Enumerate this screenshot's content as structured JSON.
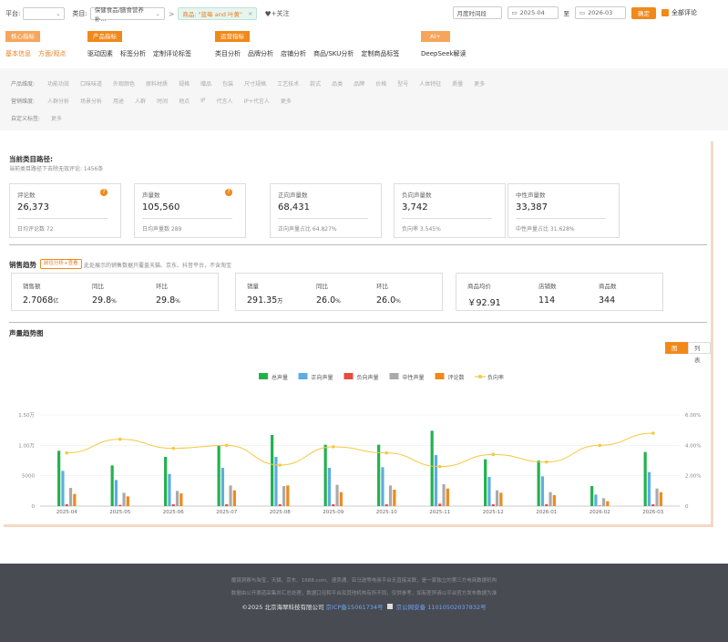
{
  "topbar": {
    "platform_label": "平台:",
    "category_label": "类目:",
    "category_value": "保健食品/膳食营养补...",
    "arrow": ">",
    "product_chip": "商品: \"蓝莓 and 叶黄\"",
    "follow_label": "+关注",
    "time_select": "月度时间段",
    "date_from": "2025-04",
    "to_label": "至",
    "date_to": "2026-03",
    "confirm_label": "确定",
    "all_reviews_label": "全部评论"
  },
  "nav": {
    "groups": [
      {
        "head": "核心指标",
        "items": [
          "基本信息",
          "方面/观点"
        ]
      },
      {
        "head": "产品指标",
        "items": [
          "驱动因素",
          "标签分析",
          "定制评论标签"
        ]
      },
      {
        "head": "运营指标",
        "items": [
          "类目分析",
          "品牌分析",
          "店铺分析",
          "商品/SKU分析",
          "定制商品标签"
        ]
      },
      {
        "head": "AI+",
        "items": [
          "DeepSeek解读"
        ]
      }
    ]
  },
  "options": {
    "row1_label": "产品维度:",
    "row1": [
      "功能功效",
      "口味味道",
      "外观颜色",
      "原料材质",
      "规格",
      "赠品",
      "包装",
      "尺寸规格",
      "工艺技术",
      "款式",
      "品类",
      "品牌",
      "价格",
      "型号",
      "人体特征",
      "质量",
      "更多"
    ],
    "row2_label": "营销维度:",
    "row2": [
      "人群分析",
      "场景分析",
      "用途",
      "人群",
      "时间",
      "地点",
      "IP",
      "代言人",
      "IP+代言人",
      "更多"
    ],
    "row3_label": "自定义标签:",
    "row3": [
      "更多"
    ]
  },
  "summary": {
    "title": "当前类目路径:",
    "subtitle": "当前类目路径下去除无效评论: 1456条",
    "cards": [
      {
        "label": "评论数",
        "value": "26,373",
        "foot": "日均评论数  72",
        "help": "?"
      },
      {
        "label": "声量数",
        "value": "105,560",
        "foot": "日均声量数  289",
        "help": "?"
      },
      {
        "label": "正向声量数",
        "value": "68,431",
        "foot": "正向声量占比  64.827%"
      },
      {
        "label": "负向声量数",
        "value": "3,742",
        "foot": "负向率  3.545%"
      },
      {
        "label": "中性声量数",
        "value": "33,387",
        "foot": "中性声量占比  31.628%"
      }
    ]
  },
  "sales": {
    "title": "销售趋势",
    "badge": "前往分析+查看",
    "note": "此处展示的销售数据只覆盖天猫、京东、抖音平台，不含淘宝",
    "box1": [
      {
        "label": "销售额",
        "value": "2.7068",
        "unit": "亿"
      },
      {
        "label": "同比",
        "value": "29.8",
        "unit": "%"
      },
      {
        "label": "环比",
        "value": "29.8",
        "unit": "%"
      }
    ],
    "box2": [
      {
        "label": "销量",
        "value": "291.35",
        "unit": "万"
      },
      {
        "label": "同比",
        "value": "26.0",
        "unit": "%"
      },
      {
        "label": "环比",
        "value": "26.0",
        "unit": "%"
      }
    ],
    "box3": [
      {
        "label": "商品均价",
        "value": "￥92.91",
        "unit": ""
      },
      {
        "label": "店铺数",
        "value": "114",
        "unit": ""
      },
      {
        "label": "商品数",
        "value": "344",
        "unit": ""
      }
    ]
  },
  "trend": {
    "title": "声量趋势图",
    "toggle_chart": "图表",
    "toggle_list": "列表"
  },
  "chart_data": {
    "type": "bar",
    "categories": [
      "2025-04",
      "2025-05",
      "2025-06",
      "2025-07",
      "2025-08",
      "2025-09",
      "2025-10",
      "2025-11",
      "2025-12",
      "2026-01",
      "2026-02",
      "2026-03"
    ],
    "series": [
      {
        "name": "总声量",
        "color": "#22b24c",
        "values": [
          9100,
          6700,
          8100,
          10000,
          11700,
          10100,
          10100,
          12400,
          7700,
          7500,
          3300,
          8900
        ]
      },
      {
        "name": "正向声量",
        "color": "#5dade2",
        "values": [
          5800,
          4300,
          5300,
          6300,
          8100,
          6300,
          6400,
          8400,
          4800,
          4900,
          1900,
          5600
        ]
      },
      {
        "name": "负向声量",
        "color": "#e74c3c",
        "values": [
          300,
          200,
          300,
          300,
          300,
          300,
          300,
          400,
          300,
          300,
          100,
          300
        ]
      },
      {
        "name": "中性声量",
        "color": "#aaaaaa",
        "values": [
          3000,
          2200,
          2500,
          3400,
          3300,
          3500,
          3400,
          3600,
          2600,
          2300,
          1300,
          2900
        ]
      },
      {
        "name": "评论数",
        "color": "#f0891a",
        "values": [
          2000,
          1600,
          2100,
          2600,
          3400,
          2300,
          2700,
          2900,
          2200,
          1800,
          800,
          2300
        ]
      },
      {
        "name": "负向率",
        "color": "#f5c842",
        "axis": "right",
        "values": [
          3.5,
          4.4,
          3.8,
          4.0,
          2.7,
          3.9,
          3.5,
          2.6,
          3.4,
          2.9,
          4.0,
          4.8
        ]
      }
    ],
    "yticks_left": [
      "0",
      "5000",
      "1.00万",
      "1.50万"
    ],
    "ylim_left": [
      0,
      15000
    ],
    "yticks_right": [
      "0",
      "2.00%",
      "4.00%",
      "6.00%"
    ],
    "ylim_right": [
      0,
      6
    ],
    "legend_position": "top"
  },
  "footer": {
    "line1": "魔镜洞察与淘宝、天猫、京东、1688.com、速卖通、亚马逊等电商平台无直接关联，是一家独立的第三方电商数据机构",
    "line2": "数据由公开渠道采集并汇总处理，数据口径和平台及其他机构有所不同，仅供参考，如有差异请以平台官方发布数据为准",
    "copyright": "©2025 北京海翠科技有限公司",
    "icp": "京ICP备15061734号",
    "police": "京公网安备 11010502037832号"
  }
}
